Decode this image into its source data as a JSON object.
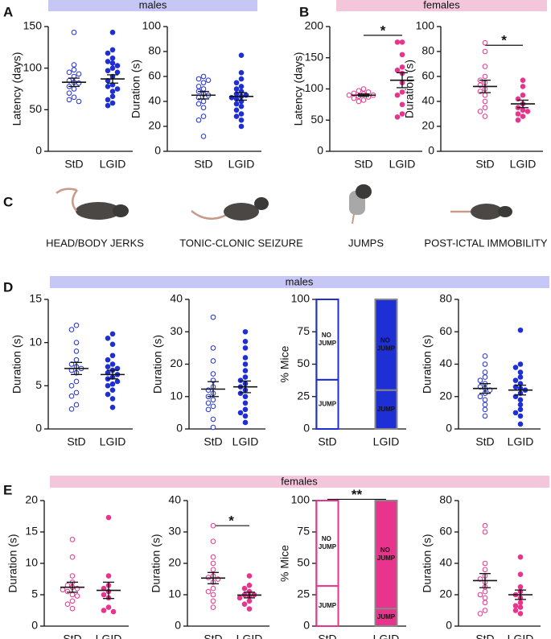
{
  "figure": {
    "panels": [
      "A",
      "B",
      "C",
      "D",
      "E"
    ],
    "banners": [
      "males",
      "females",
      "males",
      "females"
    ],
    "behaviors": [
      "HEAD/BODY JERKS",
      "TONIC-CLONIC SEIZURE",
      "JUMPS",
      "POST-ICTAL IMMOBILITY"
    ]
  },
  "chart_data": [
    {
      "type": "dotplot",
      "ylabel": "Latency (days)",
      "ylim": [
        0,
        150
      ],
      "yticks": [
        0,
        50,
        100,
        150
      ],
      "categories": [
        "StD",
        "LGID"
      ],
      "color": "#1f2fd6",
      "filled": [
        false,
        true
      ],
      "values": [
        [
          143,
          104,
          98,
          95,
          93,
          90,
          85,
          83,
          82,
          78,
          75,
          70,
          65,
          62,
          60
        ],
        [
          143,
          122,
          118,
          112,
          108,
          106,
          103,
          100,
          97,
          95,
          90,
          85,
          80,
          78,
          75,
          72,
          66,
          62,
          58,
          55
        ]
      ],
      "means": [
        83,
        87
      ],
      "sems": [
        5,
        5
      ]
    },
    {
      "type": "dotplot",
      "ylabel": "Duration (s)",
      "ylim": [
        0,
        100
      ],
      "yticks": [
        0,
        20,
        40,
        60,
        80,
        100
      ],
      "categories": [
        "StD",
        "LGID"
      ],
      "color": "#1f2fd6",
      "filled": [
        false,
        true
      ],
      "values": [
        [
          60,
          58,
          57,
          55,
          52,
          50,
          48,
          46,
          45,
          43,
          40,
          38,
          35,
          28,
          25,
          12
        ],
        [
          77,
          63,
          58,
          55,
          52,
          50,
          48,
          46,
          45,
          44,
          43,
          42,
          40,
          38,
          36,
          33,
          30,
          28,
          25,
          20
        ]
      ],
      "means": [
        45,
        44
      ],
      "sems": [
        3,
        3
      ]
    },
    {
      "type": "dotplot",
      "ylabel": "Latency (days)",
      "ylim": [
        0,
        200
      ],
      "yticks": [
        0,
        50,
        100,
        150,
        200
      ],
      "categories": [
        "StD",
        "LGID"
      ],
      "color": "#e8348c",
      "filled": [
        false,
        true
      ],
      "values": [
        [
          100,
          97,
          95,
          93,
          92,
          90,
          90,
          88,
          87,
          85,
          82,
          80
        ],
        [
          175,
          175,
          155,
          135,
          130,
          125,
          110,
          95,
          90,
          75,
          60,
          55
        ]
      ],
      "means": [
        90,
        114
      ],
      "sems": [
        2,
        12
      ],
      "significance": "*"
    },
    {
      "type": "dotplot",
      "ylabel": "Duration (s)",
      "ylim": [
        0,
        100
      ],
      "yticks": [
        0,
        20,
        40,
        60,
        80,
        100
      ],
      "categories": [
        "StD",
        "LGID"
      ],
      "color": "#e8348c",
      "filled": [
        false,
        true
      ],
      "values": [
        [
          87,
          80,
          68,
          60,
          57,
          55,
          53,
          50,
          48,
          45,
          40,
          35,
          32,
          28
        ],
        [
          57,
          52,
          45,
          42,
          38,
          35,
          33,
          32,
          30,
          28,
          25
        ]
      ],
      "means": [
        52,
        38
      ],
      "sems": [
        5,
        3
      ],
      "significance": "*"
    },
    {
      "type": "dotplot",
      "ylabel": "Duration (s)",
      "ylim": [
        0,
        15
      ],
      "yticks": [
        0,
        5,
        10,
        15
      ],
      "categories": [
        "StD",
        "LGID"
      ],
      "color": "#1f2fd6",
      "filled": [
        false,
        true
      ],
      "values": [
        [
          12,
          11.5,
          10,
          9,
          8,
          7.5,
          7.2,
          7,
          6.8,
          6.5,
          5.5,
          5,
          4.2,
          3.8,
          2.8,
          2.3
        ],
        [
          11,
          10.5,
          9.8,
          8.5,
          8,
          7.5,
          7.2,
          7,
          6.8,
          6.5,
          6.3,
          6,
          5.8,
          5.5,
          5.2,
          5,
          4.5,
          4,
          3.5,
          2.5
        ]
      ],
      "means": [
        7,
        6.3
      ],
      "sems": [
        0.7,
        0.5
      ]
    },
    {
      "type": "dotplot",
      "ylabel": "Duration (s)",
      "ylim": [
        0,
        40
      ],
      "yticks": [
        0,
        10,
        20,
        30,
        40
      ],
      "categories": [
        "StD",
        "LGID"
      ],
      "color": "#1f2fd6",
      "filled": [
        false,
        true
      ],
      "values": [
        [
          34.5,
          25,
          21,
          17,
          15,
          13,
          12,
          11,
          10,
          9,
          8,
          7,
          6,
          3,
          0.5
        ],
        [
          30,
          27,
          25,
          22,
          20,
          18,
          16,
          15,
          14,
          13,
          12,
          11,
          10,
          8,
          6,
          5,
          4,
          2
        ]
      ],
      "means": [
        12.3,
        13
      ],
      "sems": [
        2.3,
        1.8
      ]
    },
    {
      "type": "stacked-bar",
      "ylabel": "% Mice",
      "ylim": [
        0,
        100
      ],
      "yticks": [
        0,
        25,
        50,
        75,
        100
      ],
      "categories": [
        "StD",
        "LGID"
      ],
      "color": "#1f2fd6",
      "filled": [
        false,
        true
      ],
      "series": [
        {
          "name": "JUMP",
          "values": [
            38,
            30
          ]
        },
        {
          "name": "NO JUMP",
          "values": [
            62,
            70
          ]
        }
      ]
    },
    {
      "type": "dotplot",
      "ylabel": "Duration (s)",
      "ylim": [
        0,
        80
      ],
      "yticks": [
        0,
        20,
        40,
        60,
        80
      ],
      "categories": [
        "StD",
        "LGID"
      ],
      "color": "#1f2fd6",
      "filled": [
        false,
        true
      ],
      "values": [
        [
          45,
          40,
          35,
          32,
          30,
          28,
          26,
          25,
          24,
          22,
          20,
          18,
          15,
          12,
          8
        ],
        [
          61,
          40,
          38,
          35,
          32,
          30,
          28,
          26,
          25,
          24,
          22,
          20,
          18,
          15,
          12,
          10,
          8,
          3
        ]
      ],
      "means": [
        25,
        24
      ],
      "sems": [
        3,
        3
      ]
    },
    {
      "type": "dotplot",
      "ylabel": "Duration (s)",
      "ylim": [
        0,
        20
      ],
      "yticks": [
        0,
        5,
        10,
        15,
        20
      ],
      "categories": [
        "StD",
        "LGID"
      ],
      "color": "#e8348c",
      "filled": [
        false,
        true
      ],
      "values": [
        [
          13.8,
          11,
          8,
          7,
          6.5,
          6.2,
          6,
          5.8,
          5.5,
          5,
          4.8,
          4,
          3.5,
          2.8
        ],
        [
          17.3,
          8,
          6.5,
          6,
          5.5,
          5,
          4.5,
          3,
          2.5,
          2.3
        ]
      ],
      "means": [
        6.2,
        5.7
      ],
      "sems": [
        0.8,
        1.3
      ]
    },
    {
      "type": "dotplot",
      "ylabel": "Duration (s)",
      "ylim": [
        0,
        40
      ],
      "yticks": [
        0,
        10,
        20,
        30,
        40
      ],
      "categories": [
        "StD",
        "LGID"
      ],
      "color": "#e8348c",
      "filled": [
        false,
        true
      ],
      "values": [
        [
          32,
          27,
          22,
          20,
          18,
          16,
          15.5,
          15,
          14,
          12,
          11,
          10,
          8,
          6
        ],
        [
          16,
          13,
          12,
          11,
          10,
          10,
          9.5,
          9,
          8,
          7,
          5.5
        ]
      ],
      "means": [
        15.3,
        9.9
      ],
      "sems": [
        1.8,
        0.9
      ],
      "significance": "*"
    },
    {
      "type": "stacked-bar",
      "ylabel": "% Mice",
      "ylim": [
        0,
        100
      ],
      "yticks": [
        0,
        25,
        50,
        75,
        100
      ],
      "categories": [
        "StD",
        "LGID"
      ],
      "color": "#e8348c",
      "filled": [
        false,
        true
      ],
      "series": [
        {
          "name": "JUMP",
          "values": [
            32,
            14
          ]
        },
        {
          "name": "NO JUMP",
          "values": [
            68,
            86
          ]
        }
      ],
      "significance": "**"
    },
    {
      "type": "dotplot",
      "ylabel": "Duration (s)",
      "ylim": [
        0,
        80
      ],
      "yticks": [
        0,
        20,
        40,
        60,
        80
      ],
      "categories": [
        "StD",
        "LGID"
      ],
      "color": "#e8348c",
      "filled": [
        false,
        true
      ],
      "values": [
        [
          64,
          60,
          40,
          36,
          32,
          30,
          28,
          25,
          22,
          20,
          18,
          15,
          10,
          8
        ],
        [
          44,
          33,
          25,
          22,
          20,
          18,
          15,
          13,
          12,
          10,
          8
        ]
      ],
      "means": [
        29,
        20
      ],
      "sems": [
        4.5,
        3
      ]
    }
  ]
}
